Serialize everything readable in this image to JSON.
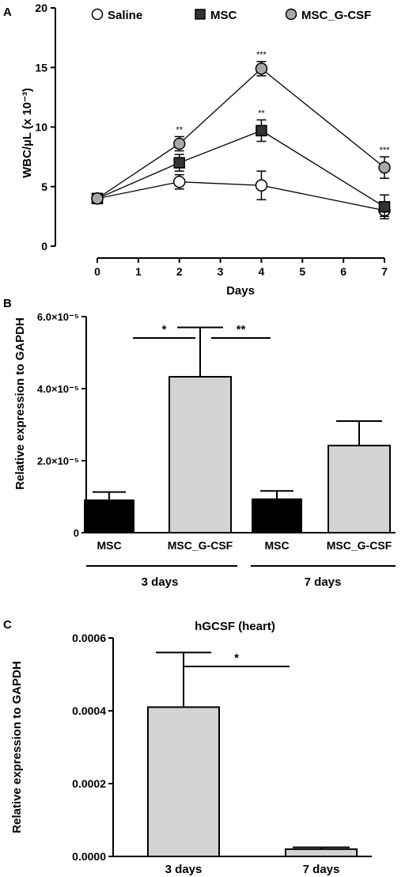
{
  "chart_data": [
    {
      "panel": "A",
      "type": "line",
      "xlabel": "Days",
      "ylabel": "WBC/µL (x 10⁻³)",
      "xlim": [
        0,
        7
      ],
      "ylim": [
        0,
        20
      ],
      "xticks": [
        "0",
        "1",
        "2",
        "3",
        "4",
        "5",
        "6",
        "7"
      ],
      "yticks": [
        "0",
        "5",
        "10",
        "15",
        "20"
      ],
      "legend_position": "top",
      "series": [
        {
          "name": "Saline",
          "marker": "circle",
          "fill": "#ffffff",
          "x": [
            0,
            2,
            4,
            7
          ],
          "y": [
            4.0,
            5.4,
            5.1,
            3.0
          ],
          "err": [
            0.3,
            0.6,
            1.2,
            0.5
          ],
          "annotations": [
            "",
            "",
            "",
            ""
          ]
        },
        {
          "name": "MSC",
          "marker": "square",
          "fill": "#333333",
          "x": [
            0,
            2,
            4,
            7
          ],
          "y": [
            4.0,
            7.0,
            9.7,
            3.3
          ],
          "err": [
            0.3,
            0.7,
            0.9,
            1.0
          ],
          "annotations": [
            "",
            "",
            "**",
            ""
          ]
        },
        {
          "name": "MSC_G-CSF",
          "marker": "circle",
          "fill": "#a8a8a8",
          "x": [
            0,
            2,
            4,
            7
          ],
          "y": [
            4.0,
            8.6,
            14.9,
            6.6
          ],
          "err": [
            0.3,
            0.6,
            0.6,
            0.9
          ],
          "annotations": [
            "",
            "**",
            "***",
            "***"
          ]
        }
      ]
    },
    {
      "panel": "B",
      "type": "bar",
      "ylabel": "Relative expression to GAPDH",
      "ylim": [
        0,
        6e-05
      ],
      "yticks": [
        "0",
        "2.0×10⁻⁵",
        "4.0×10⁻⁵",
        "6.0×10⁻⁵"
      ],
      "categories": [
        "MSC",
        "MSC_G-CSF",
        "MSC",
        "MSC_G-CSF"
      ],
      "values": [
        9e-06,
        4.33e-05,
        9.3e-06,
        2.42e-05
      ],
      "errors": [
        2.3e-06,
        1.37e-05,
        2.3e-06,
        6.8e-06
      ],
      "colors": [
        "#000000",
        "#d3d3d3",
        "#000000",
        "#d3d3d3"
      ],
      "groups": [
        "3 days",
        "7 days"
      ],
      "significance": [
        {
          "from": 0,
          "to": 1,
          "label": "*"
        },
        {
          "from": 1,
          "to": 2,
          "label": "**"
        }
      ]
    },
    {
      "panel": "C",
      "type": "bar",
      "title": "hGCSF (heart)",
      "ylabel": "Relative expression to GAPDH",
      "ylim": [
        0,
        0.0006
      ],
      "yticks": [
        "0.0000",
        "0.0002",
        "0.0004",
        "0.0006"
      ],
      "categories": [
        "3 days",
        "7 days"
      ],
      "values": [
        0.00041,
        2e-05
      ],
      "errors": [
        0.00015,
        5e-06
      ],
      "colors": [
        "#d3d3d3",
        "#d3d3d3"
      ],
      "significance": [
        {
          "from": 0,
          "to": 1,
          "label": "*"
        }
      ]
    }
  ],
  "labels": {
    "panel_a": "A",
    "panel_b": "B",
    "panel_c": "C"
  }
}
